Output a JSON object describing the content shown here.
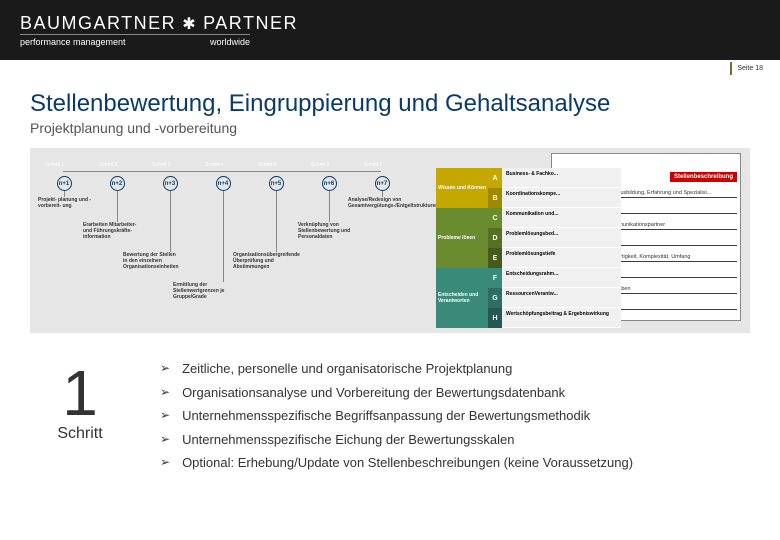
{
  "header": {
    "logo_main_a": "BAUMGARTNER",
    "logo_main_b": "PARTNER",
    "logo_sub_a": "performance management",
    "logo_sub_b": "worldwide"
  },
  "page_number": "Seite 18",
  "title": "Stellenbewertung, Eingruppierung und Gehaltsanalyse",
  "subtitle": "Projektplanung und -vorbereitung",
  "diagram": {
    "steps": [
      {
        "label": "Schritt 1",
        "shade": "a",
        "desc": "Projekt-\nplanung\nund\n-vorbereit-\nung"
      },
      {
        "label": "Schritt 2",
        "shade": "b",
        "desc": "Erarbeiten Mitarbeiter- und Führungskräfte-information"
      },
      {
        "label": "Schritt 3",
        "shade": "a",
        "desc": "Bewertung der Stellen in den einzelnen Organisationseinheiten"
      },
      {
        "label": "Schritt 4",
        "shade": "b",
        "desc": "Ermittlung der Stellenwertgrenzen je Gruppe/Grade"
      },
      {
        "label": "Schritt 5",
        "shade": "a",
        "desc": "Organisationsübergreifende Überprüfung und Abstimmungen"
      },
      {
        "label": "Schritt 6",
        "shade": "b",
        "desc": "Verknüpfung von Stellenbewertung und Personaldaten"
      },
      {
        "label": "Schritt 7",
        "shade": "a",
        "desc": "Analyse/Redesign von Gesamtvergütungs-/Entgeltstrukturen"
      }
    ],
    "circle_prefix": "n+"
  },
  "overlay": {
    "stellenbeschreibung": "Stellenbeschreibung",
    "back_rows": [
      "vgl. Ausbildung, Erfahrung und Spezialisi...",
      "...",
      "Kommunikationspartner",
      "...",
      "Neuartigkeit, Komplexität, Umfang",
      "...",
      "Vorgaben",
      "..."
    ],
    "categories": [
      {
        "label": "Wissen und Können",
        "cls": "clg-a",
        "rows": [
          {
            "letter": "A",
            "lc": "lc-ya",
            "text": "Business- & Fachko..."
          },
          {
            "letter": "B",
            "lc": "lc-yb",
            "text": "Koordinationskompe..."
          }
        ]
      },
      {
        "label": "Probleme lösen",
        "cls": "clg-b",
        "rows": [
          {
            "letter": "C",
            "lc": "lc-ga",
            "text": "Kommunikation und..."
          },
          {
            "letter": "D",
            "lc": "lc-gb",
            "text": "Problemlösungsbed..."
          },
          {
            "letter": "E",
            "lc": "lc-gc",
            "text": "Problemlösungstiefe"
          }
        ]
      },
      {
        "label": "Entscheiden und Verantworten",
        "cls": "clg-c",
        "rows": [
          {
            "letter": "F",
            "lc": "lc-ta",
            "text": "Entscheidungsrahm..."
          },
          {
            "letter": "G",
            "lc": "lc-tb",
            "text": "RessourcenVerantw..."
          },
          {
            "letter": "H",
            "lc": "lc-tc",
            "text": "Wertschöpfungsbeitrag & Ergebniswirkung"
          }
        ]
      }
    ]
  },
  "bottom": {
    "number": "1",
    "label": "Schritt",
    "bullets": [
      "Zeitliche, personelle und organisatorische Projektplanung",
      "Organisationsanalyse und Vorbereitung der Bewertungsdatenbank",
      "Unternehmensspezifische Begriffsanpassung der Bewertungsmethodik",
      "Unternehmensspezifische Eichung der Bewertungsskalen",
      "Optional: Erhebung/Update von Stellenbeschreibungen (keine Voraussetzung)"
    ]
  },
  "colors": {
    "dark_blue": "#0a3a6a",
    "mid_blue": "#3a5a8a",
    "grey_bg": "#e6e6e6",
    "red": "#c00"
  }
}
